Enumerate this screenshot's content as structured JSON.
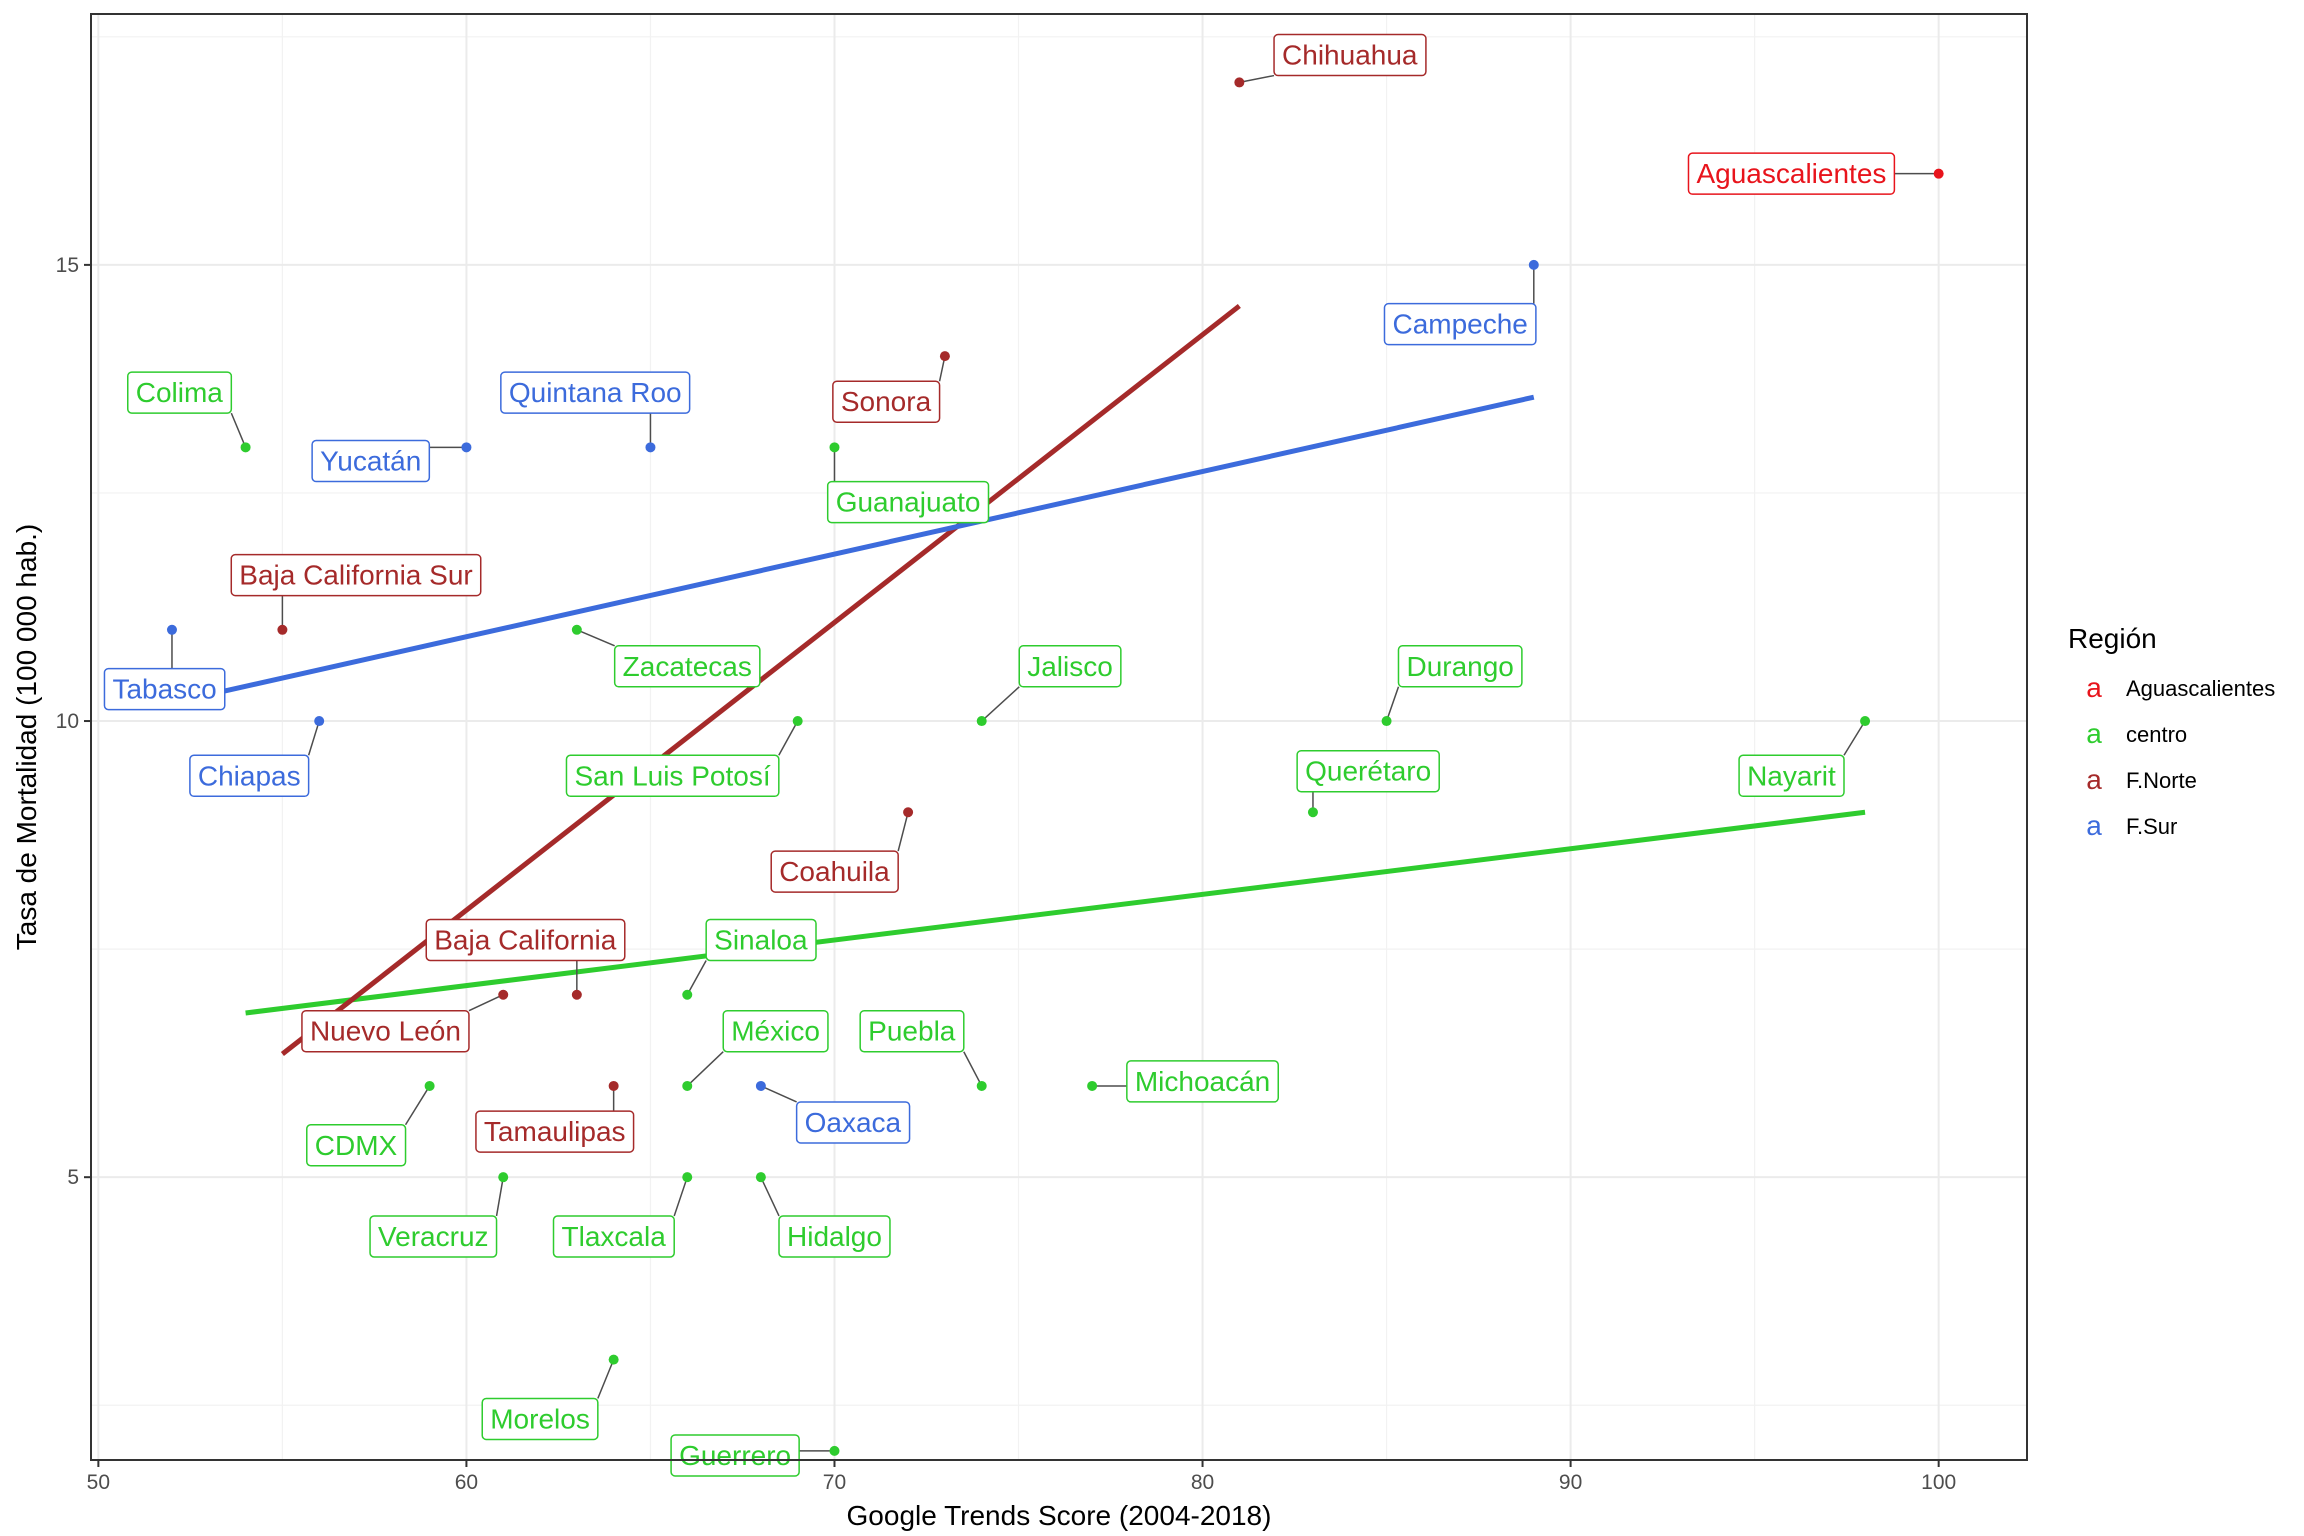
{
  "chart_data": {
    "type": "scatter",
    "xlabel": "Google Trends Score (2004-2018)",
    "ylabel": "Tasa de Mortalidad   (100 000 hab.)",
    "xlim": [
      49.8,
      102.4
    ],
    "ylim": [
      1.9,
      17.75
    ],
    "x_ticks": [
      50,
      60,
      70,
      80,
      90,
      100
    ],
    "y_ticks": [
      5,
      10,
      15
    ],
    "grid": true,
    "legend": {
      "title": "Región",
      "position": "right",
      "key_glyph": "a",
      "entries": [
        {
          "name": "Aguascalientes",
          "color": "#e8141c"
        },
        {
          "name": "centro",
          "color": "#2ecc2e"
        },
        {
          "name": "F.Norte",
          "color": "#a52a2a"
        },
        {
          "name": "F.Sur",
          "color": "#3c6bdc"
        }
      ]
    },
    "series": [
      {
        "name": "Aguascalientes",
        "color": "#e8141c",
        "points": [
          {
            "label": "Aguascalientes",
            "x": 100,
            "y": 16,
            "lx": 96,
            "ly": 16
          }
        ]
      },
      {
        "name": "centro",
        "color": "#2ecc2e",
        "points": [
          {
            "label": "Colima",
            "x": 54,
            "y": 13,
            "lx": 52.2,
            "ly": 13.6
          },
          {
            "label": "Guanajuato",
            "x": 70,
            "y": 13,
            "lx": 72,
            "ly": 12.4
          },
          {
            "label": "Zacatecas",
            "x": 63,
            "y": 11,
            "lx": 66,
            "ly": 10.6
          },
          {
            "label": "Jalisco",
            "x": 74,
            "y": 10,
            "lx": 76.4,
            "ly": 10.6
          },
          {
            "label": "Durango",
            "x": 85,
            "y": 10,
            "lx": 87,
            "ly": 10.6
          },
          {
            "label": "San Luis Potosí",
            "x": 69,
            "y": 10,
            "lx": 65.6,
            "ly": 9.4
          },
          {
            "label": "Querétaro",
            "x": 83,
            "y": 9,
            "lx": 84.5,
            "ly": 9.45
          },
          {
            "label": "Nayarit",
            "x": 98,
            "y": 10,
            "lx": 96,
            "ly": 9.4
          },
          {
            "label": "Sinaloa",
            "x": 66,
            "y": 7,
            "lx": 68,
            "ly": 7.6
          },
          {
            "label": "México",
            "x": 66,
            "y": 6,
            "lx": 68.4,
            "ly": 6.6
          },
          {
            "label": "Puebla",
            "x": 74,
            "y": 6,
            "lx": 72.1,
            "ly": 6.6
          },
          {
            "label": "Michoacán",
            "x": 77,
            "y": 6,
            "lx": 80,
            "ly": 6.05
          },
          {
            "label": "CDMX",
            "x": 59,
            "y": 6,
            "lx": 57,
            "ly": 5.35
          },
          {
            "label": "Veracruz",
            "x": 61,
            "y": 5,
            "lx": 59.1,
            "ly": 4.35
          },
          {
            "label": "Tlaxcala",
            "x": 66,
            "y": 5,
            "lx": 64,
            "ly": 4.35
          },
          {
            "label": "Hidalgo",
            "x": 68,
            "y": 5,
            "lx": 70,
            "ly": 4.35
          },
          {
            "label": "Morelos",
            "x": 64,
            "y": 3,
            "lx": 62,
            "ly": 2.35
          },
          {
            "label": "Guerrero",
            "x": 70,
            "y": 2,
            "lx": 67.3,
            "ly": 1.95
          }
        ]
      },
      {
        "name": "F.Norte",
        "color": "#a52a2a",
        "points": [
          {
            "label": "Chihuahua",
            "x": 81,
            "y": 17,
            "lx": 84,
            "ly": 17.3
          },
          {
            "label": "Sonora",
            "x": 73,
            "y": 14,
            "lx": 71.4,
            "ly": 13.5
          },
          {
            "label": "Baja California Sur",
            "x": 55,
            "y": 11,
            "lx": 57,
            "ly": 11.6
          },
          {
            "label": "Coahuila",
            "x": 72,
            "y": 9,
            "lx": 70,
            "ly": 8.35
          },
          {
            "label": "Baja California",
            "x": 63,
            "y": 7,
            "lx": 61.6,
            "ly": 7.6
          },
          {
            "label": "Nuevo León",
            "x": 61,
            "y": 7,
            "lx": 57.8,
            "ly": 6.6
          },
          {
            "label": "Tamaulipas",
            "x": 64,
            "y": 6,
            "lx": 62.4,
            "ly": 5.5
          }
        ]
      },
      {
        "name": "F.Sur",
        "color": "#3c6bdc",
        "points": [
          {
            "label": "Campeche",
            "x": 89,
            "y": 15,
            "lx": 87,
            "ly": 14.35
          },
          {
            "label": "Quintana Roo",
            "x": 65,
            "y": 13,
            "lx": 63.5,
            "ly": 13.6
          },
          {
            "label": "Yucatán",
            "x": 60,
            "y": 13,
            "lx": 57.4,
            "ly": 12.85
          },
          {
            "label": "Tabasco",
            "x": 52,
            "y": 11,
            "lx": 51.8,
            "ly": 10.35
          },
          {
            "label": "Chiapas",
            "x": 56,
            "y": 10,
            "lx": 54.1,
            "ly": 9.4
          },
          {
            "label": "Oaxaca",
            "x": 68,
            "y": 6,
            "lx": 70.5,
            "ly": 5.6
          }
        ]
      }
    ],
    "fit_lines": [
      {
        "series": "centro",
        "color": "#2ecc2e",
        "x": [
          54,
          98
        ],
        "y": [
          6.8,
          9.0
        ]
      },
      {
        "series": "F.Norte",
        "color": "#a52a2a",
        "x": [
          55,
          81
        ],
        "y": [
          6.35,
          14.55
        ]
      },
      {
        "series": "F.Sur",
        "color": "#3c6bdc",
        "x": [
          52,
          89
        ],
        "y": [
          10.2,
          13.55
        ]
      }
    ]
  }
}
